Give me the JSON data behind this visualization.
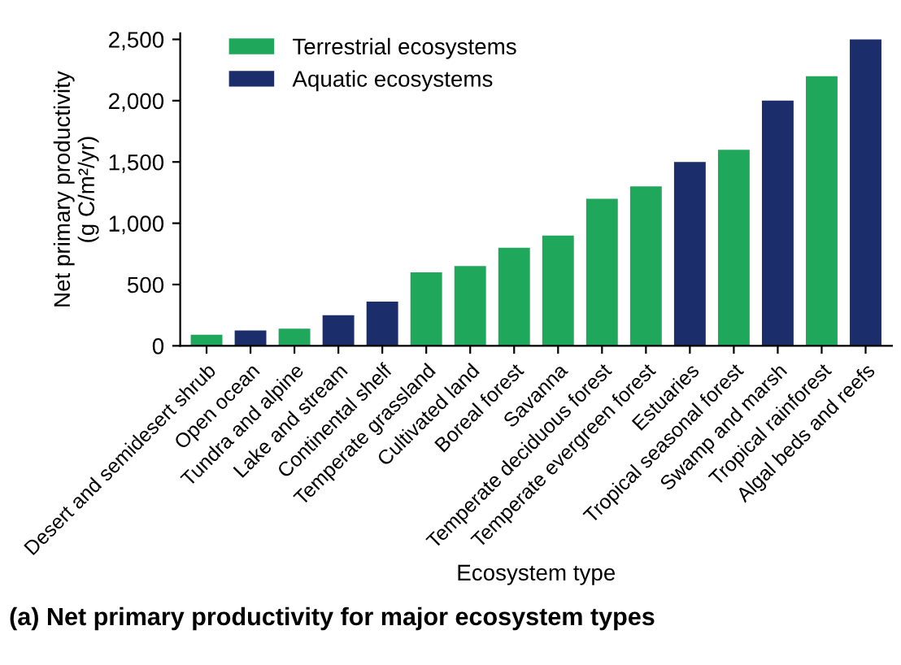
{
  "chart_data": {
    "type": "bar",
    "title": "(a) Net primary productivity for major ecosystem types",
    "xlabel": "Ecosystem type",
    "ylabel": "Net primary productivity\n(g C/m²/yr)",
    "categories": [
      "Desert and semidesert shrub",
      "Open ocean",
      "Tundra and alpine",
      "Lake and stream",
      "Continental shelf",
      "Temperate grassland",
      "Cultivated land",
      "Boreal forest",
      "Savanna",
      "Temperate deciduous forest",
      "Temperate evergreen forest",
      "Estuaries",
      "Tropical seasonal forest",
      "Swamp and marsh",
      "Tropical rainforest",
      "Algal beds and reefs"
    ],
    "series": [
      {
        "name": "Terrestrial ecosystems",
        "color": "#1fa85c",
        "values": [
          90,
          null,
          140,
          null,
          null,
          600,
          650,
          800,
          900,
          1200,
          1300,
          null,
          1600,
          null,
          2200,
          null
        ]
      },
      {
        "name": "Aquatic ecosystems",
        "color": "#1b2d6b",
        "values": [
          null,
          125,
          null,
          250,
          360,
          null,
          null,
          null,
          null,
          null,
          null,
          1500,
          null,
          2000,
          null,
          2500
        ]
      }
    ],
    "ylim": [
      0,
      2550
    ],
    "yticks": [
      0,
      500,
      {
        "value": 1000,
        "label": "1,000"
      },
      {
        "value": 1500,
        "label": "1,500"
      },
      {
        "value": 2000,
        "label": "2,000"
      },
      {
        "value": 2500,
        "label": "2,500"
      }
    ],
    "grid": false,
    "legend": "top left"
  }
}
